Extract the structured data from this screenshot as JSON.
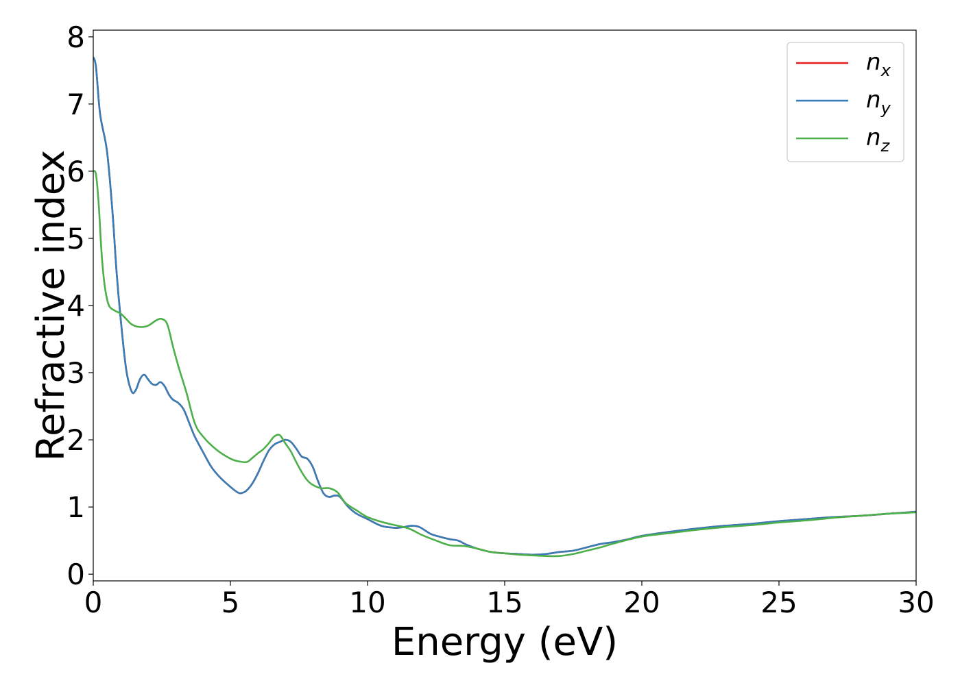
{
  "chart_data": {
    "type": "line",
    "title": "",
    "xlabel": "Energy (eV)",
    "ylabel": "Refractive index",
    "xlim": [
      0,
      30
    ],
    "ylim": [
      -0.1,
      8.1
    ],
    "xticks": [
      0,
      5,
      10,
      15,
      20,
      25,
      30
    ],
    "yticks": [
      0,
      1,
      2,
      3,
      4,
      5,
      6,
      7,
      8
    ],
    "grid": false,
    "legend_position": "top-right",
    "series": [
      {
        "key": "nx",
        "name": "n",
        "subscript": "x",
        "color": "#e41a1c",
        "x": [
          0,
          0.1,
          0.25,
          0.5,
          0.7,
          0.85,
          1.0,
          1.2,
          1.4,
          1.55,
          1.7,
          1.85,
          2.0,
          2.15,
          2.3,
          2.45,
          2.6,
          2.75,
          2.9,
          3.1,
          3.3,
          3.5,
          3.7,
          4.0,
          4.3,
          4.6,
          5.0,
          5.3,
          5.5,
          5.65,
          5.8,
          6.0,
          6.2,
          6.4,
          6.6,
          6.8,
          7.0,
          7.2,
          7.4,
          7.6,
          7.8,
          8.0,
          8.2,
          8.4,
          8.6,
          8.8,
          9.0,
          9.3,
          9.6,
          10.0,
          10.5,
          11.0,
          11.3,
          11.6,
          11.9,
          12.3,
          12.7,
          13.0,
          13.3,
          13.6,
          14.0,
          14.5,
          15.0,
          15.5,
          16.0,
          16.5,
          17.0,
          17.5,
          18.0,
          18.5,
          19.0,
          19.5,
          20.0,
          21.0,
          22.0,
          23.0,
          24.0,
          25.0,
          26.0,
          27.0,
          28.0,
          29.0,
          30.0
        ],
        "y": [
          7.7,
          7.55,
          6.85,
          6.3,
          5.4,
          4.5,
          3.8,
          3.05,
          2.72,
          2.74,
          2.9,
          2.97,
          2.9,
          2.83,
          2.82,
          2.86,
          2.8,
          2.68,
          2.6,
          2.55,
          2.45,
          2.25,
          2.05,
          1.82,
          1.6,
          1.45,
          1.3,
          1.21,
          1.22,
          1.27,
          1.35,
          1.5,
          1.68,
          1.84,
          1.93,
          1.97,
          2.0,
          1.97,
          1.87,
          1.75,
          1.72,
          1.6,
          1.38,
          1.2,
          1.15,
          1.17,
          1.15,
          1.0,
          0.9,
          0.82,
          0.72,
          0.69,
          0.7,
          0.72,
          0.7,
          0.6,
          0.55,
          0.52,
          0.5,
          0.44,
          0.38,
          0.33,
          0.31,
          0.3,
          0.29,
          0.3,
          0.33,
          0.35,
          0.4,
          0.45,
          0.48,
          0.52,
          0.57,
          0.63,
          0.68,
          0.72,
          0.75,
          0.79,
          0.82,
          0.85,
          0.87,
          0.9,
          0.93
        ]
      },
      {
        "key": "ny",
        "name": "n",
        "subscript": "y",
        "color": "#377eb8",
        "x": [
          0,
          0.1,
          0.25,
          0.5,
          0.7,
          0.85,
          1.0,
          1.2,
          1.4,
          1.55,
          1.7,
          1.85,
          2.0,
          2.15,
          2.3,
          2.45,
          2.6,
          2.75,
          2.9,
          3.1,
          3.3,
          3.5,
          3.7,
          4.0,
          4.3,
          4.6,
          5.0,
          5.3,
          5.5,
          5.65,
          5.8,
          6.0,
          6.2,
          6.4,
          6.6,
          6.8,
          7.0,
          7.2,
          7.4,
          7.6,
          7.8,
          8.0,
          8.2,
          8.4,
          8.6,
          8.8,
          9.0,
          9.3,
          9.6,
          10.0,
          10.5,
          11.0,
          11.3,
          11.6,
          11.9,
          12.3,
          12.7,
          13.0,
          13.3,
          13.6,
          14.0,
          14.5,
          15.0,
          15.5,
          16.0,
          16.5,
          17.0,
          17.5,
          18.0,
          18.5,
          19.0,
          19.5,
          20.0,
          21.0,
          22.0,
          23.0,
          24.0,
          25.0,
          26.0,
          27.0,
          28.0,
          29.0,
          30.0
        ],
        "y": [
          7.7,
          7.55,
          6.85,
          6.3,
          5.4,
          4.5,
          3.8,
          3.05,
          2.72,
          2.74,
          2.9,
          2.97,
          2.9,
          2.83,
          2.82,
          2.86,
          2.8,
          2.68,
          2.6,
          2.55,
          2.45,
          2.25,
          2.05,
          1.82,
          1.6,
          1.45,
          1.3,
          1.21,
          1.22,
          1.27,
          1.35,
          1.5,
          1.68,
          1.84,
          1.93,
          1.97,
          2.0,
          1.97,
          1.87,
          1.75,
          1.72,
          1.6,
          1.38,
          1.2,
          1.15,
          1.17,
          1.15,
          1.0,
          0.9,
          0.82,
          0.72,
          0.69,
          0.7,
          0.72,
          0.7,
          0.6,
          0.55,
          0.52,
          0.5,
          0.44,
          0.38,
          0.33,
          0.31,
          0.3,
          0.29,
          0.3,
          0.33,
          0.35,
          0.4,
          0.45,
          0.48,
          0.52,
          0.57,
          0.63,
          0.68,
          0.72,
          0.75,
          0.79,
          0.82,
          0.85,
          0.87,
          0.9,
          0.93
        ]
      },
      {
        "key": "nz",
        "name": "n",
        "subscript": "z",
        "color": "#4daf4a",
        "x": [
          0,
          0.1,
          0.2,
          0.3,
          0.4,
          0.5,
          0.6,
          0.8,
          1.0,
          1.2,
          1.4,
          1.7,
          2.0,
          2.3,
          2.5,
          2.7,
          2.9,
          3.1,
          3.4,
          3.7,
          4.0,
          4.5,
          5.0,
          5.3,
          5.6,
          5.8,
          6.0,
          6.2,
          6.4,
          6.6,
          6.8,
          7.0,
          7.2,
          7.4,
          7.6,
          7.8,
          8.0,
          8.3,
          8.6,
          8.9,
          9.2,
          9.6,
          10.0,
          10.5,
          11.0,
          11.5,
          12.0,
          12.5,
          13.0,
          13.5,
          14.0,
          14.5,
          15.0,
          15.5,
          16.0,
          16.5,
          17.0,
          17.5,
          18.0,
          18.5,
          19.0,
          20.0,
          21.0,
          22.0,
          23.0,
          24.0,
          25.0,
          26.0,
          27.0,
          28.0,
          29.0,
          30.0
        ],
        "y": [
          6.0,
          5.95,
          5.5,
          4.8,
          4.35,
          4.1,
          3.98,
          3.92,
          3.88,
          3.8,
          3.72,
          3.68,
          3.7,
          3.78,
          3.8,
          3.72,
          3.4,
          3.1,
          2.7,
          2.25,
          2.05,
          1.85,
          1.72,
          1.68,
          1.67,
          1.73,
          1.8,
          1.86,
          1.95,
          2.05,
          2.07,
          1.95,
          1.83,
          1.67,
          1.52,
          1.4,
          1.33,
          1.28,
          1.28,
          1.22,
          1.06,
          0.95,
          0.85,
          0.78,
          0.73,
          0.68,
          0.58,
          0.5,
          0.43,
          0.42,
          0.38,
          0.33,
          0.31,
          0.29,
          0.28,
          0.27,
          0.27,
          0.3,
          0.35,
          0.4,
          0.46,
          0.56,
          0.61,
          0.66,
          0.7,
          0.73,
          0.77,
          0.8,
          0.84,
          0.87,
          0.9,
          0.92
        ]
      }
    ]
  }
}
